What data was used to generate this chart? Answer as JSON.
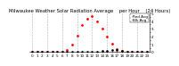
{
  "title": "Milwaukee Weather Solar Radiation Average    per Hour    (24 Hours)",
  "hours": [
    0,
    1,
    2,
    3,
    4,
    5,
    6,
    7,
    8,
    9,
    10,
    11,
    12,
    13,
    14,
    15,
    16,
    17,
    18,
    19,
    20,
    21,
    22,
    23
  ],
  "red_values": [
    0,
    0,
    0,
    0,
    0,
    0,
    2,
    20,
    90,
    210,
    340,
    430,
    460,
    390,
    295,
    195,
    105,
    38,
    6,
    0,
    0,
    0,
    0,
    0
  ],
  "black_values": [
    0,
    0,
    0,
    0,
    0,
    0,
    0,
    0,
    0,
    0,
    0,
    0,
    0,
    0,
    5,
    15,
    25,
    20,
    8,
    2,
    0,
    0,
    0,
    0
  ],
  "red_color": "#ff0000",
  "black_color": "#000000",
  "bg_color": "#ffffff",
  "grid_color": "#aaaaaa",
  "ylim": [
    0,
    500
  ],
  "ytick_vals": [
    0,
    50,
    100,
    150,
    200,
    250,
    300,
    350,
    400,
    450,
    500
  ],
  "ytick_labels": [
    "0",
    "",
    "1",
    "",
    "2",
    "",
    "3",
    "",
    "4",
    "",
    "5"
  ],
  "xtick_vals": [
    0,
    1,
    2,
    3,
    4,
    5,
    6,
    7,
    8,
    9,
    10,
    11,
    12,
    13,
    14,
    15,
    16,
    17,
    18,
    19,
    20,
    21,
    22,
    23
  ],
  "xtick_labels": [
    "0",
    "1",
    "2",
    "3",
    "4",
    "5",
    "6",
    "7",
    "8",
    "9",
    "10",
    "11",
    "12",
    "13",
    "14",
    "15",
    "16",
    "17",
    "18",
    "19",
    "20",
    "21",
    "22",
    "23"
  ],
  "grid_hours": [
    0,
    3,
    6,
    9,
    12,
    15,
    18,
    21
  ],
  "title_fontsize": 3.8,
  "tick_fontsize": 3.0,
  "legend_red_label": "Red Avg",
  "legend_black_label": "Blk Avg",
  "legend_fontsize": 3.0
}
